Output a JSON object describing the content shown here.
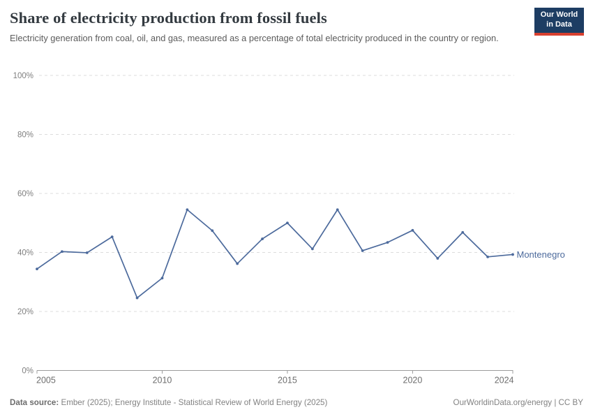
{
  "header": {
    "title": "Share of electricity production from fossil fuels",
    "subtitle": "Electricity generation from coal, oil, and gas, measured as a percentage of total electricity produced in the country or region.",
    "logo": {
      "line1": "Our World",
      "line2": "in Data",
      "bg_color": "#1d3d63",
      "accent_color": "#d8402f"
    }
  },
  "chart_data": {
    "type": "line",
    "title": "Share of electricity production from fossil fuels",
    "x": [
      2005,
      2006,
      2007,
      2008,
      2009,
      2010,
      2011,
      2012,
      2013,
      2014,
      2015,
      2016,
      2017,
      2018,
      2019,
      2020,
      2021,
      2022,
      2023,
      2024
    ],
    "series": [
      {
        "name": "Montenegro",
        "color": "#4c6a9c",
        "values": [
          34.4,
          40.3,
          39.9,
          45.3,
          24.6,
          31.3,
          54.5,
          47.4,
          36.2,
          44.6,
          50.0,
          41.2,
          54.5,
          40.6,
          43.4,
          47.5,
          38.0,
          46.8,
          38.5,
          39.3
        ]
      }
    ],
    "xlabel": "",
    "ylabel": "",
    "ylim": [
      0,
      100
    ],
    "yticks": [
      0,
      20,
      40,
      60,
      80,
      100
    ],
    "ytick_labels": [
      "0%",
      "20%",
      "40%",
      "60%",
      "80%",
      "100%"
    ],
    "xticks": [
      2005,
      2010,
      2015,
      2020,
      2024
    ],
    "grid": "horizontal-dashed",
    "legend_position": "end-of-line-label",
    "gridline_color": "#dcdcdc",
    "axis_color": "#9c9c9c",
    "tick_label_color": "#7f7f7f"
  },
  "footer": {
    "source_label": "Data source:",
    "source_text": "Ember (2025); Energy Institute - Statistical Review of World Energy (2025)",
    "attribution": "OurWorldinData.org/energy | CC BY"
  }
}
